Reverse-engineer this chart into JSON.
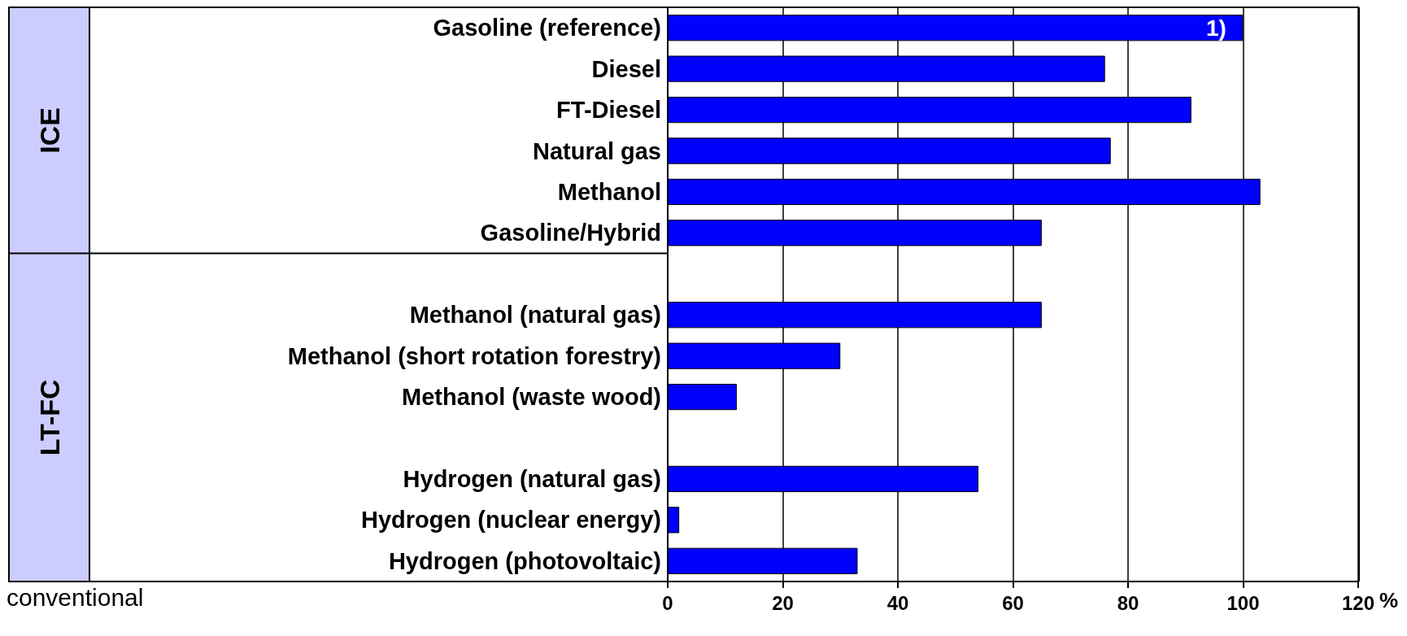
{
  "chart_data": {
    "type": "bar",
    "orientation": "horizontal",
    "categories": [
      "Gasoline (reference)",
      "Diesel",
      "FT-Diesel",
      "Natural gas",
      "Methanol",
      "Gasoline/Hybrid",
      null,
      "Methanol (natural gas)",
      "Methanol (short rotation forestry)",
      "Methanol (waste wood)",
      null,
      "Hydrogen (natural gas)",
      "Hydrogen (nuclear energy)",
      "Hydrogen (photovoltaic)"
    ],
    "values": [
      100,
      76,
      91,
      77,
      103,
      65,
      null,
      65,
      30,
      12,
      null,
      54,
      2,
      33
    ],
    "color": "#0000ff",
    "xlabel": "%",
    "xlim": [
      0,
      120
    ],
    "xticks": [
      0,
      20,
      40,
      60,
      80,
      100,
      120
    ],
    "grid": "x",
    "annotations": [
      "ICE",
      "LT-FC",
      "conventional",
      "1)"
    ]
  }
}
